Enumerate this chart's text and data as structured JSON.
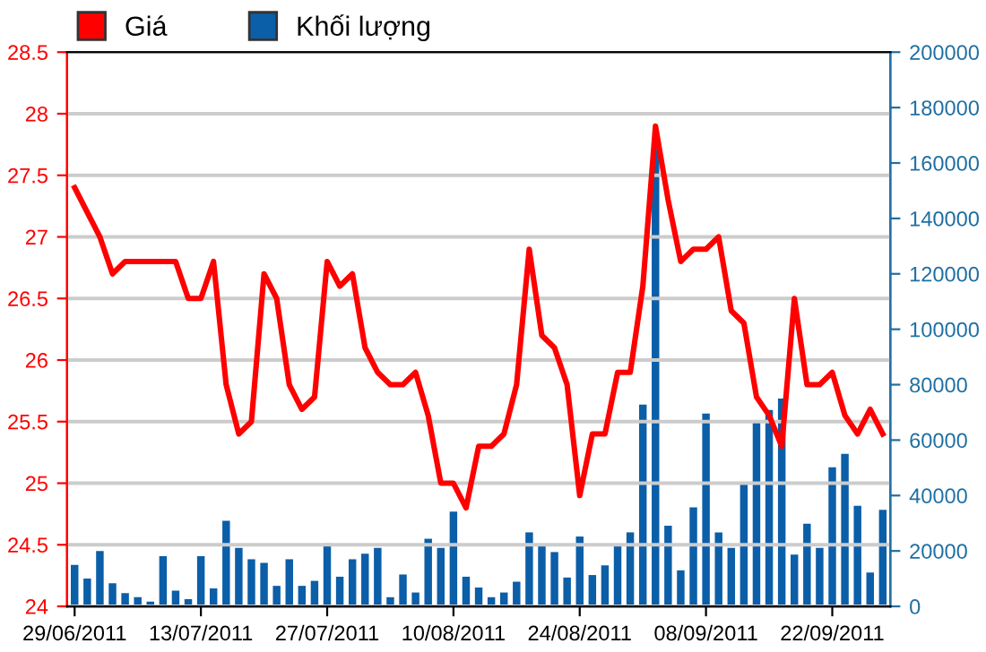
{
  "chart_data": {
    "type": "bar",
    "categories": [
      "29/06/2011",
      null,
      null,
      null,
      null,
      null,
      null,
      null,
      null,
      null,
      "13/07/2011",
      null,
      null,
      null,
      null,
      null,
      null,
      null,
      null,
      null,
      "27/07/2011",
      null,
      null,
      null,
      null,
      null,
      null,
      null,
      null,
      null,
      "10/08/2011",
      null,
      null,
      null,
      null,
      null,
      null,
      null,
      null,
      null,
      "24/08/2011",
      null,
      null,
      null,
      null,
      null,
      null,
      null,
      null,
      null,
      "08/09/2011",
      null,
      null,
      null,
      null,
      null,
      null,
      null,
      null,
      null,
      "22/09/2011",
      null,
      null,
      null,
      null
    ],
    "series": [
      {
        "name": "Giá",
        "type": "line",
        "axis": "y",
        "color": "#ff0000",
        "values": [
          27.4,
          27.2,
          27.0,
          26.7,
          26.8,
          26.8,
          26.8,
          26.8,
          26.8,
          26.5,
          26.5,
          26.8,
          25.8,
          25.4,
          25.5,
          26.7,
          26.5,
          25.8,
          25.6,
          25.7,
          26.8,
          26.6,
          26.7,
          26.1,
          25.9,
          25.8,
          25.8,
          25.9,
          25.55,
          25.0,
          25.0,
          24.8,
          25.3,
          25.3,
          25.4,
          25.8,
          26.9,
          26.2,
          26.1,
          25.8,
          24.9,
          25.4,
          25.4,
          25.9,
          25.9,
          26.6,
          27.9,
          27.3,
          26.8,
          26.9,
          26.9,
          27.0,
          26.4,
          26.3,
          25.7,
          25.55,
          25.3,
          26.5,
          25.8,
          25.8,
          25.9,
          25.55,
          25.4,
          25.6,
          25.4
        ]
      },
      {
        "name": "Khối lượng",
        "axis": "y2",
        "color": "#0b5ea8",
        "values": [
          15000,
          10000,
          20000,
          8300,
          4800,
          3300,
          1700,
          18100,
          5700,
          2600,
          18100,
          6500,
          30900,
          21100,
          17000,
          15700,
          7400,
          17000,
          7400,
          9200,
          22700,
          10700,
          17000,
          19000,
          21100,
          3300,
          11500,
          5000,
          24400,
          21100,
          34200,
          10700,
          6800,
          3300,
          5000,
          8900,
          26700,
          22600,
          19600,
          10400,
          25200,
          11300,
          14800,
          22600,
          26700,
          72800,
          165000,
          29100,
          13000,
          35700,
          69600,
          26700,
          21100,
          44800,
          66300,
          70900,
          75000,
          18700,
          29800,
          21100,
          50200,
          55000,
          36300,
          12200,
          34800
        ]
      }
    ],
    "ylim": [
      24,
      28.5
    ],
    "yticks": [
      24,
      24.5,
      25,
      25.5,
      26,
      26.5,
      27,
      27.5,
      28,
      28.5
    ],
    "y2lim": [
      0,
      200000
    ],
    "y2ticks": [
      0,
      20000,
      40000,
      60000,
      80000,
      100000,
      120000,
      140000,
      160000,
      180000,
      200000
    ],
    "grid": "y",
    "legend": "top left"
  }
}
